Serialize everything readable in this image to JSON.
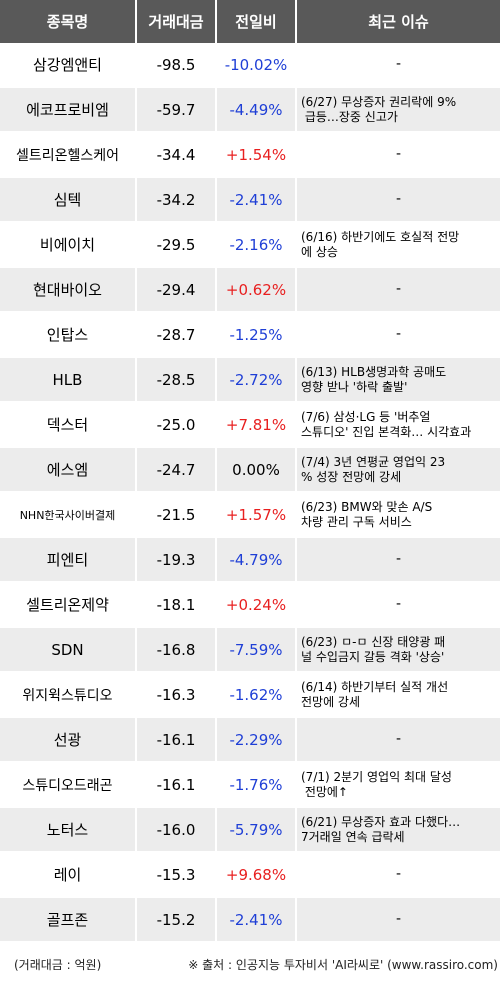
{
  "header": {
    "col_name": "종목명",
    "col_volume": "거래대금",
    "col_change": "전일비",
    "col_issue": "최근 이슈"
  },
  "rows": [
    {
      "name": "삼강엠앤티",
      "volume": "-98.5",
      "change": "-10.02%",
      "dir": "neg",
      "issue": "-"
    },
    {
      "name": "에코프로비엠",
      "volume": "-59.7",
      "change": "-4.49%",
      "dir": "neg",
      "issue": "(6/27) 무상증자 권리락에 9%\n 급등…장중 신고가"
    },
    {
      "name": "셀트리온헬스케어",
      "volume": "-34.4",
      "change": "+1.54%",
      "dir": "pos",
      "issue": "-"
    },
    {
      "name": "심텍",
      "volume": "-34.2",
      "change": "-2.41%",
      "dir": "neg",
      "issue": "-"
    },
    {
      "name": "비에이치",
      "volume": "-29.5",
      "change": "-2.16%",
      "dir": "neg",
      "issue": "(6/16) 하반기에도 호실적 전망\n에 상승"
    },
    {
      "name": "현대바이오",
      "volume": "-29.4",
      "change": "+0.62%",
      "dir": "pos",
      "issue": "-"
    },
    {
      "name": "인탑스",
      "volume": "-28.7",
      "change": "-1.25%",
      "dir": "neg",
      "issue": "-"
    },
    {
      "name": "HLB",
      "volume": "-28.5",
      "change": "-2.72%",
      "dir": "neg",
      "issue": "(6/13) HLB생명과학 공매도\n영향 받나 '하락 출발'"
    },
    {
      "name": "덱스터",
      "volume": "-25.0",
      "change": "+7.81%",
      "dir": "pos",
      "issue": "(7/6) 삼성·LG 등 '버추얼\n스튜디오' 진입 본격화… 시각효과"
    },
    {
      "name": "에스엠",
      "volume": "-24.7",
      "change": "0.00%",
      "dir": "flat",
      "issue": "(7/4) 3년 연평균 영업익 23\n% 성장 전망에 강세"
    },
    {
      "name": "NHN한국사이버결제",
      "volume": "-21.5",
      "change": "+1.57%",
      "dir": "pos",
      "issue": "(6/23) BMW와 맞손 A/S\n차량 관리 구독 서비스"
    },
    {
      "name": "피엔티",
      "volume": "-19.3",
      "change": "-4.79%",
      "dir": "neg",
      "issue": "-"
    },
    {
      "name": "셀트리온제약",
      "volume": "-18.1",
      "change": "+0.24%",
      "dir": "pos",
      "issue": "-"
    },
    {
      "name": "SDN",
      "volume": "-16.8",
      "change": "-7.59%",
      "dir": "neg",
      "issue": "(6/23) ㅁ-ㅁ 신장 태양광 패\n널 수입금지 갈등 격화 '상승'"
    },
    {
      "name": "위지윅스튜디오",
      "volume": "-16.3",
      "change": "-1.62%",
      "dir": "neg",
      "issue": "(6/14) 하반기부터 실적 개선\n전망에 강세"
    },
    {
      "name": "선광",
      "volume": "-16.1",
      "change": "-2.29%",
      "dir": "neg",
      "issue": "-"
    },
    {
      "name": "스튜디오드래곤",
      "volume": "-16.1",
      "change": "-1.76%",
      "dir": "neg",
      "issue": "(7/1) 2분기 영업익 최대 달성\n 전망에↑"
    },
    {
      "name": "노터스",
      "volume": "-16.0",
      "change": "-5.79%",
      "dir": "neg",
      "issue": "(6/21) 무상증자 효과 다했다…\n7거래일 연속 급락세"
    },
    {
      "name": "레이",
      "volume": "-15.3",
      "change": "+9.68%",
      "dir": "pos",
      "issue": "-"
    },
    {
      "name": "골프존",
      "volume": "-15.2",
      "change": "-2.41%",
      "dir": "neg",
      "issue": "-"
    }
  ],
  "footer": {
    "unit_note": "(거래대금 : 억원)",
    "source_note": "※ 출처 : 인공지능 투자비서 'AI라씨로' (www.rassiro.com)"
  },
  "colors": {
    "header_bg": "#595959",
    "row_alt_bg": "#ececec",
    "negative": "#1f3fd6",
    "positive": "#e81f1f"
  }
}
